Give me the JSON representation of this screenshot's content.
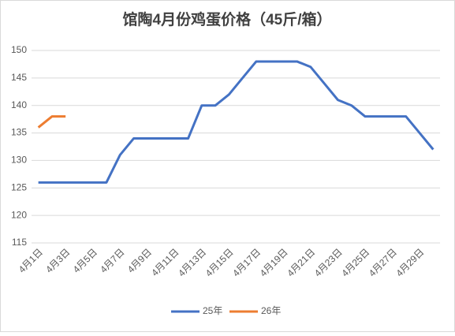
{
  "chart_data": {
    "type": "line",
    "title": "馆陶4月份鸡蛋价格（45斤/箱）",
    "categories": [
      "4月1日",
      null,
      "4月3日",
      null,
      "4月5日",
      null,
      "4月7日",
      null,
      "4月9日",
      null,
      "4月11日",
      null,
      "4月13日",
      null,
      "4月15日",
      null,
      "4月17日",
      null,
      "4月19日",
      null,
      "4月21日",
      null,
      "4月23日",
      null,
      "4月25日",
      null,
      "4月27日",
      null,
      "4月29日",
      null
    ],
    "series": [
      {
        "name": "25年",
        "color": "#4472c4",
        "values": [
          126,
          126,
          126,
          126,
          126,
          126,
          131,
          134,
          134,
          134,
          134,
          134,
          140,
          140,
          142,
          145,
          148,
          148,
          148,
          148,
          147,
          144,
          141,
          140,
          138,
          138,
          138,
          138,
          135,
          132
        ]
      },
      {
        "name": "26年",
        "color": "#ed7d31",
        "values": [
          136,
          138,
          138,
          null,
          null,
          null,
          null,
          null,
          null,
          null,
          null,
          null,
          null,
          null,
          null,
          null,
          null,
          null,
          null,
          null,
          null,
          null,
          null,
          null,
          null,
          null,
          null,
          null,
          null,
          null
        ]
      }
    ],
    "ylim": [
      115,
      150
    ],
    "yticks": [
      115,
      120,
      125,
      130,
      135,
      140,
      145,
      150
    ],
    "grid": true,
    "legend": "bottom"
  }
}
